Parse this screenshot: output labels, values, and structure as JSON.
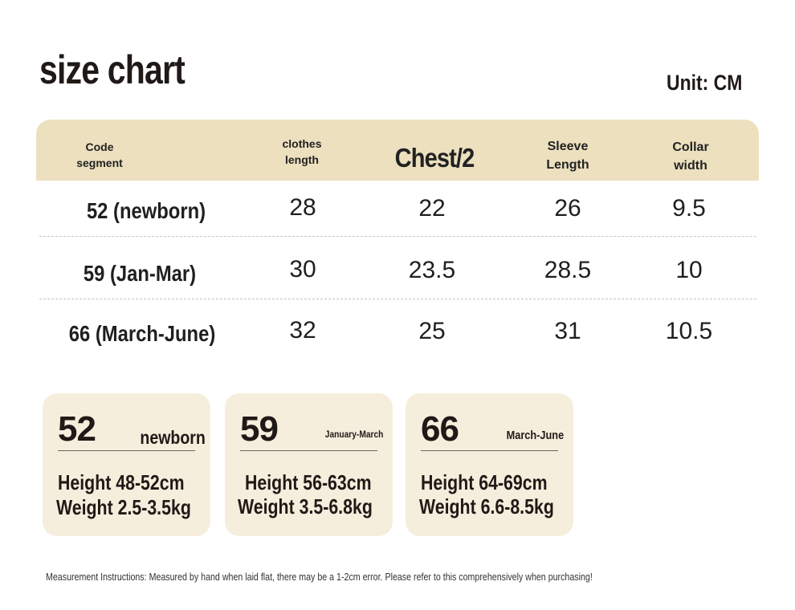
{
  "title": "size chart",
  "unit": "Unit: CM",
  "headers": {
    "segment": [
      "Code",
      "segment"
    ],
    "length": [
      "clothes",
      "length"
    ],
    "chest": "Chest/2",
    "sleeve": [
      "Sleeve",
      "Length"
    ],
    "collar": [
      "Collar",
      "width"
    ]
  },
  "rows": [
    {
      "segment": "52 (newborn)",
      "length": "28",
      "chest": "22",
      "sleeve": "26",
      "collar": "9.5"
    },
    {
      "segment": "59 (Jan-Mar)",
      "length": "30",
      "chest": "23.5",
      "sleeve": "28.5",
      "collar": "10"
    },
    {
      "segment": "66 (March-June)",
      "length": "32",
      "chest": "25",
      "sleeve": "31",
      "collar": "10.5"
    }
  ],
  "cards": [
    {
      "size": "52",
      "label": "newborn",
      "height": "Height 48-52cm",
      "weight": "Weight 2.5-3.5kg"
    },
    {
      "size": "59",
      "label": "January-March",
      "height": "Height 56-63cm",
      "weight": "Weight 3.5-6.8kg"
    },
    {
      "size": "66",
      "label": "March-June",
      "height": "Height 64-69cm",
      "weight": "Weight 6.6-8.5kg"
    }
  ],
  "note": "Measurement Instructions: Measured by hand when laid flat, there may be a 1-2cm error. Please refer to this comprehensively when purchasing!",
  "colors": {
    "header_bg": "#ece0bf",
    "card_bg": "#f6eedc",
    "text": "#1f1a17"
  }
}
